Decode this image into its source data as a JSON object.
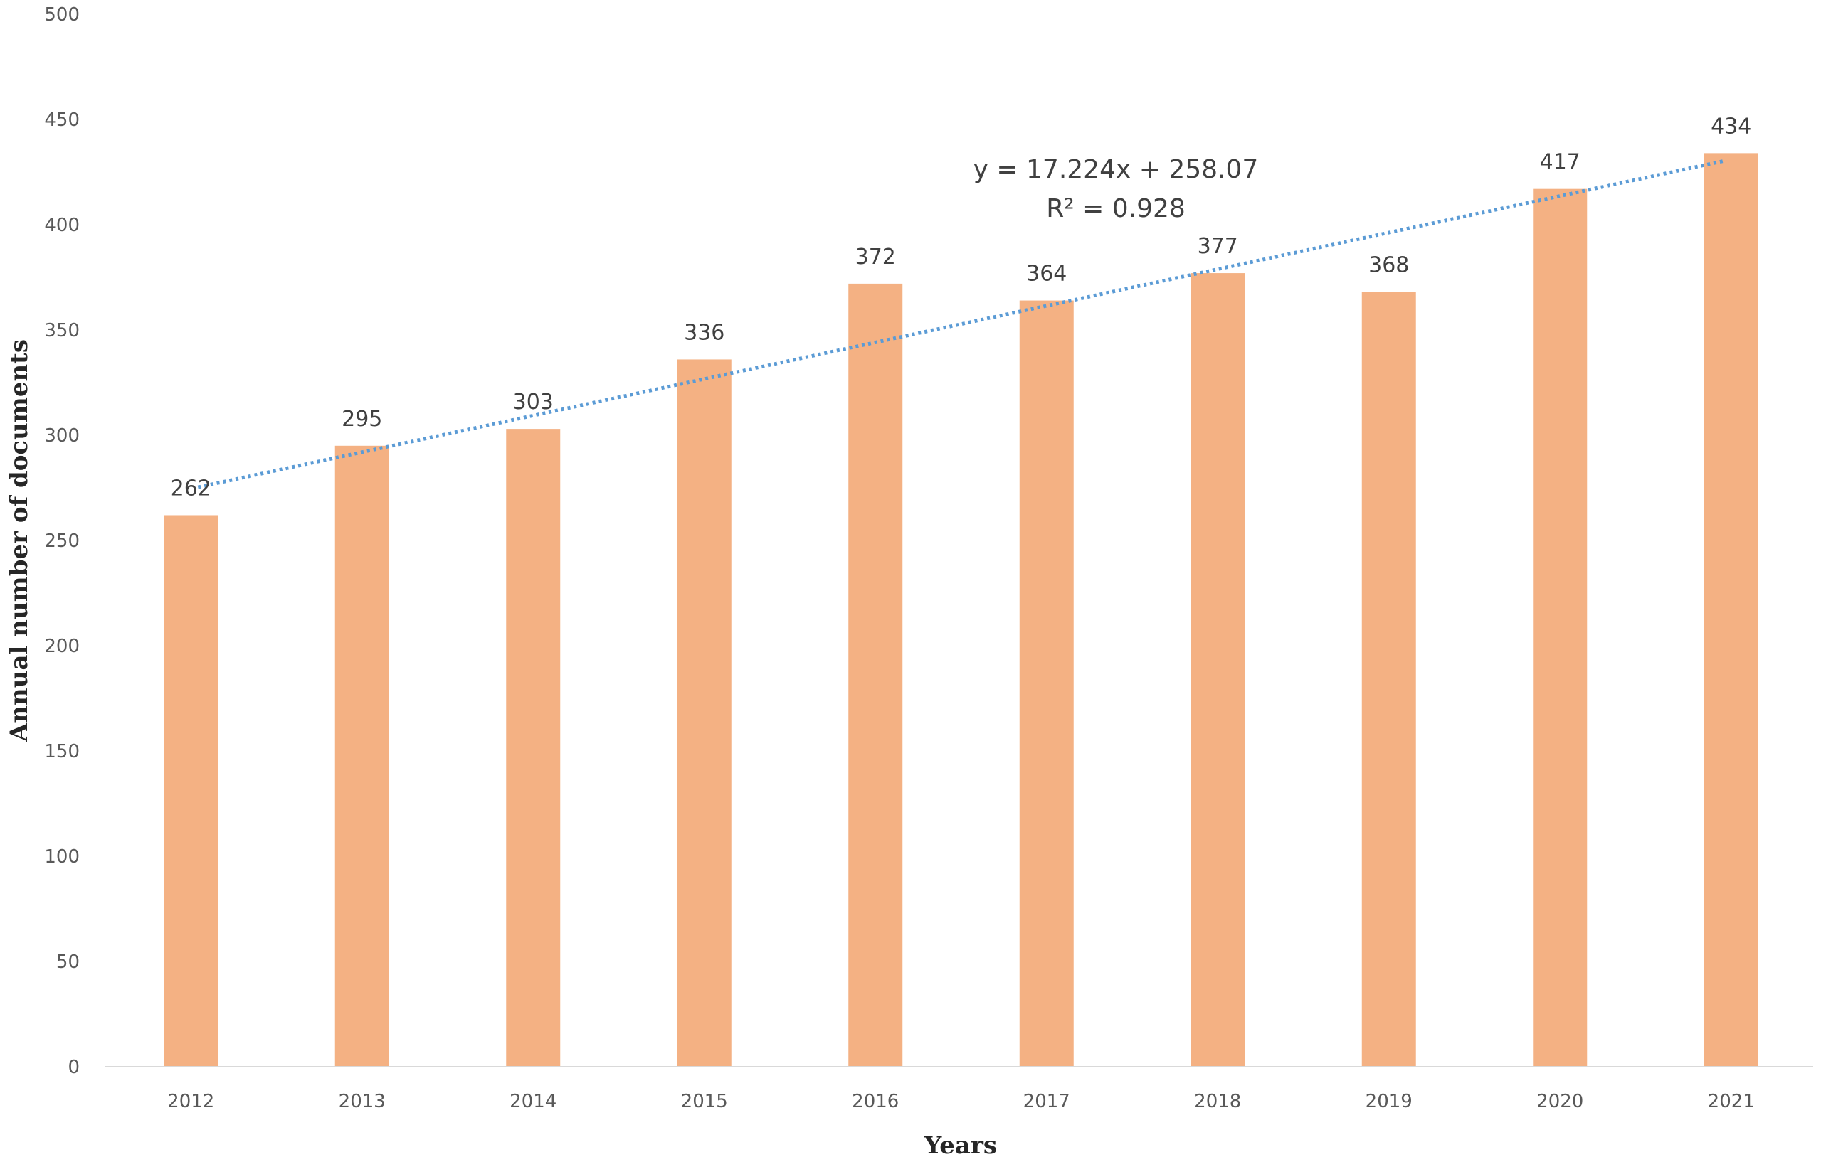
{
  "chart_data": {
    "type": "bar",
    "title": "",
    "xlabel": "Years",
    "ylabel": "Annual number of documents",
    "categories": [
      "2012",
      "2013",
      "2014",
      "2015",
      "2016",
      "2017",
      "2018",
      "2019",
      "2020",
      "2021"
    ],
    "series": [
      {
        "values": [
          262,
          295,
          303,
          336,
          372,
          364,
          377,
          368,
          417,
          434
        ],
        "color": "#f4b183"
      }
    ],
    "data_labels": [
      "262",
      "295",
      "303",
      "336",
      "372",
      "364",
      "377",
      "368",
      "417",
      "434"
    ],
    "ylim": [
      0,
      500
    ],
    "y_ticks": [
      0,
      50,
      100,
      150,
      200,
      250,
      300,
      350,
      400,
      450,
      500
    ],
    "y_tick_labels": [
      "0",
      "50",
      "100",
      "150",
      "200",
      "250",
      "300",
      "350",
      "400",
      "450",
      "500"
    ],
    "grid": false,
    "legend": "none",
    "trendline": {
      "type": "linear",
      "slope": 17.224,
      "intercept": 258.07,
      "equation_label": "y = 17.224x + 258.07",
      "r2_label": "R² = 0.928",
      "color": "#5b9bd5",
      "style": "dotted"
    }
  }
}
